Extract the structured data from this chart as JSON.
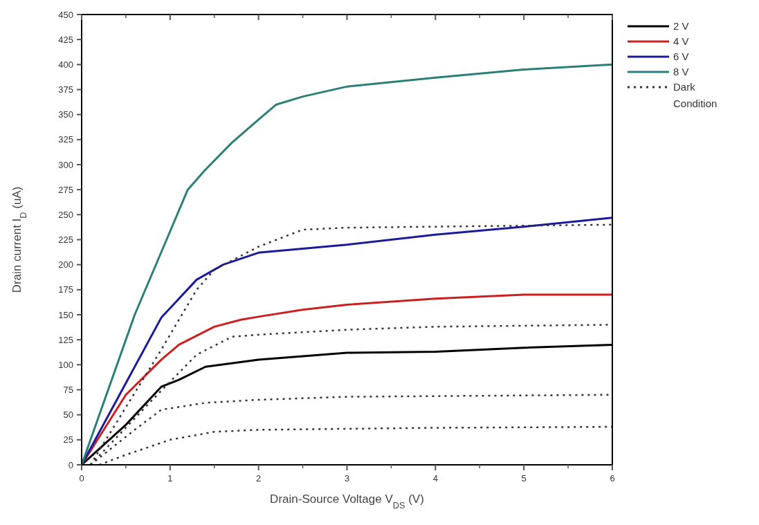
{
  "chart_data": {
    "type": "line",
    "xlabel": "Drain-Source Voltage V$_{DS}$ (V)",
    "ylabel": "Drain current I$_{D}$ (uA)",
    "xlim": [
      0,
      6
    ],
    "xticks": [
      0,
      1,
      2,
      3,
      4,
      5,
      6
    ],
    "ylim": [
      0,
      450
    ],
    "yticks": [
      0,
      25,
      50,
      75,
      100,
      125,
      150,
      175,
      200,
      225,
      250,
      275,
      300,
      325,
      350,
      375,
      400,
      425,
      450
    ],
    "grid": false,
    "legend": "right",
    "series": [
      {
        "name": "2 V",
        "color": "#000000",
        "line_style": "solid",
        "x": [
          0,
          0.5,
          0.9,
          1.1,
          1.4,
          2,
          3,
          4,
          5,
          6
        ],
        "values": [
          0,
          40,
          78,
          85,
          98,
          105,
          112,
          113,
          117,
          120
        ]
      },
      {
        "name": "4 V",
        "color": "#cc1f1f",
        "line_style": "solid",
        "x": [
          0,
          0.5,
          0.9,
          1.1,
          1.5,
          1.8,
          2,
          2.5,
          3,
          4,
          5,
          6
        ],
        "values": [
          0,
          70,
          105,
          120,
          138,
          145,
          148,
          155,
          160,
          166,
          170,
          170
        ]
      },
      {
        "name": "6 V",
        "color": "#1a1a9c",
        "line_style": "solid",
        "x": [
          0,
          0.9,
          1.3,
          1.6,
          2,
          3,
          4,
          5,
          6
        ],
        "values": [
          0,
          147,
          185,
          200,
          212,
          220,
          230,
          238,
          247
        ]
      },
      {
        "name": "8 V",
        "color": "#2a7f78",
        "line_style": "solid",
        "x": [
          0,
          0.6,
          1.2,
          1.4,
          1.7,
          2,
          2.2,
          2.5,
          3,
          4,
          5,
          6
        ],
        "values": [
          0,
          150,
          275,
          295,
          322,
          345,
          360,
          368,
          378,
          387,
          395,
          400
        ]
      },
      {
        "name": "Dark Condition",
        "color": "#333333",
        "line_style": "dotted",
        "x": [
          0.1,
          0.9,
          1.3,
          1.5,
          2,
          2.5,
          3,
          4,
          6
        ],
        "values": [
          0,
          115,
          175,
          195,
          218,
          235,
          237,
          238,
          240
        ]
      },
      {
        "color": "#333333",
        "line_style": "dotted",
        "x": [
          0.1,
          0.8,
          1.3,
          1.7,
          2,
          3,
          4,
          6
        ],
        "values": [
          0,
          65,
          110,
          128,
          130,
          135,
          138,
          140
        ]
      },
      {
        "color": "#333333",
        "line_style": "dotted",
        "x": [
          0.1,
          0.6,
          0.9,
          1.4,
          2,
          3,
          6
        ],
        "values": [
          0,
          35,
          55,
          62,
          65,
          68,
          70
        ]
      },
      {
        "color": "#333333",
        "line_style": "dotted",
        "x": [
          0.2,
          0.5,
          1,
          1.5,
          2,
          4,
          6
        ],
        "values": [
          0,
          10,
          25,
          33,
          35,
          37,
          38
        ]
      }
    ]
  }
}
